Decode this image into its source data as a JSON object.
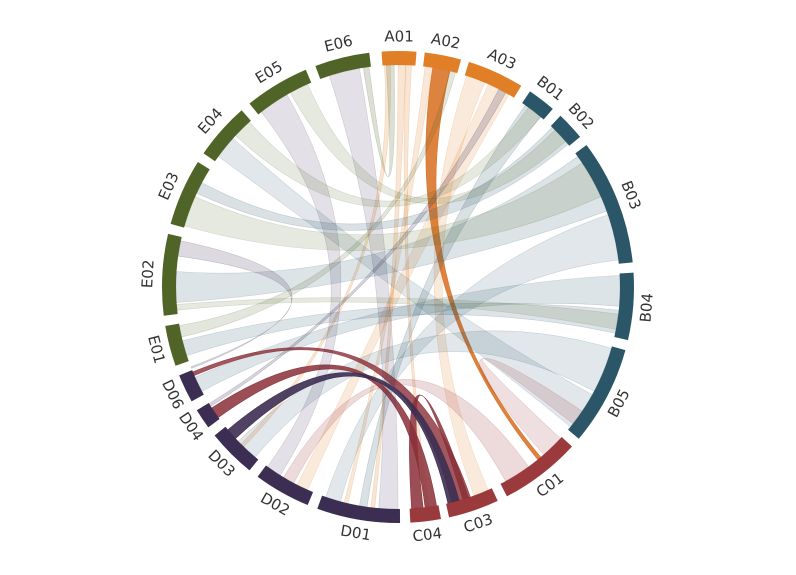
{
  "diagram": {
    "type": "chord",
    "groups": [
      {
        "id": "A01",
        "label": "A01",
        "start": -4.0,
        "end": 4.5,
        "color": "#e07f26"
      },
      {
        "id": "A02",
        "label": "A02",
        "start": 6.5,
        "end": 15.5,
        "color": "#e07f26"
      },
      {
        "id": "A03",
        "label": "A03",
        "start": 17.5,
        "end": 31.5,
        "color": "#e07f26"
      },
      {
        "id": "B01",
        "label": "B01",
        "start": 34.0,
        "end": 41.0,
        "color": "#2a5667"
      },
      {
        "id": "B02",
        "label": "B02",
        "start": 43.5,
        "end": 50.5,
        "color": "#2a5667"
      },
      {
        "id": "B03",
        "label": "B03",
        "start": 53.0,
        "end": 84.0,
        "color": "#2a5667"
      },
      {
        "id": "B04",
        "label": "B04",
        "start": 86.5,
        "end": 103.0,
        "color": "#2a5667"
      },
      {
        "id": "B05",
        "label": "B05",
        "start": 105.5,
        "end": 130.0,
        "color": "#2a5667"
      },
      {
        "id": "C01",
        "label": "C01",
        "start": 132.5,
        "end": 152.5,
        "color": "#9a3a3c"
      },
      {
        "id": "C03",
        "label": "C03",
        "start": 155.0,
        "end": 167.5,
        "color": "#9a3a3c"
      },
      {
        "id": "C04",
        "label": "C04",
        "start": 169.5,
        "end": 177.0,
        "color": "#9a3a3c"
      },
      {
        "id": "D01",
        "label": "D01",
        "start": 179.5,
        "end": 200.0,
        "color": "#3c2e52"
      },
      {
        "id": "D02",
        "label": "D02",
        "start": 202.5,
        "end": 216.5,
        "color": "#3c2e52"
      },
      {
        "id": "D03",
        "label": "D03",
        "start": 219.0,
        "end": 231.0,
        "color": "#3c2e52"
      },
      {
        "id": "D04",
        "label": "D04",
        "start": 233.5,
        "end": 238.5,
        "color": "#3c2e52"
      },
      {
        "id": "D06",
        "label": "D06",
        "start": 241.0,
        "end": 248.0,
        "color": "#3c2e52"
      },
      {
        "id": "E01",
        "label": "E01",
        "start": 250.5,
        "end": 260.5,
        "color": "#4f6426"
      },
      {
        "id": "E02",
        "label": "E02",
        "start": 263.0,
        "end": 283.0,
        "color": "#4f6426"
      },
      {
        "id": "E03",
        "label": "E03",
        "start": 285.5,
        "end": 302.0,
        "color": "#4f6426"
      },
      {
        "id": "E04",
        "label": "E04",
        "start": 304.5,
        "end": 318.5,
        "color": "#4f6426"
      },
      {
        "id": "E05",
        "label": "E05",
        "start": 321.0,
        "end": 337.0,
        "color": "#4f6426"
      },
      {
        "id": "E06",
        "label": "E06",
        "start": 339.5,
        "end": 353.0,
        "color": "#4f6426"
      }
    ],
    "ribbons": [
      {
        "source": "A01",
        "target": "D01",
        "s": [
          0,
          2
        ],
        "t": [
          186,
          187
        ],
        "opacity": 0.2,
        "color": "#e07f26"
      },
      {
        "source": "A01",
        "target": "C04",
        "s": [
          2,
          3.5
        ],
        "t": [
          172,
          173
        ],
        "opacity": 0.2,
        "color": "#e07f26"
      },
      {
        "source": "A01",
        "target": "D03",
        "s": [
          -3.5,
          -2
        ],
        "t": [
          224,
          225
        ],
        "opacity": 0.2,
        "color": "#e07f26"
      },
      {
        "source": "A02",
        "target": "C01",
        "s": [
          9,
          13.5
        ],
        "t": [
          140,
          141
        ],
        "opacity": 0.9,
        "color": "#d9742a"
      },
      {
        "source": "A02",
        "target": "D01",
        "s": [
          7,
          9
        ],
        "t": [
          193,
          194
        ],
        "opacity": 0.18,
        "color": "#e07f26"
      },
      {
        "source": "A03",
        "target": "C03",
        "s": [
          18,
          23
        ],
        "t": [
          156,
          160
        ],
        "opacity": 0.16,
        "color": "#e07f26"
      },
      {
        "source": "A03",
        "target": "D02",
        "s": [
          24,
          30
        ],
        "t": [
          204,
          207
        ],
        "opacity": 0.16,
        "color": "#e07f26"
      },
      {
        "source": "B01",
        "target": "D01",
        "s": [
          35,
          40
        ],
        "t": [
          188,
          190
        ],
        "opacity": 0.18,
        "color": "#2a5667"
      },
      {
        "source": "B02",
        "target": "E03",
        "s": [
          44,
          50
        ],
        "t": [
          295,
          298
        ],
        "opacity": 0.18,
        "color": "#2a5667"
      },
      {
        "source": "B03",
        "target": "E02",
        "s": [
          54,
          70
        ],
        "t": [
          266,
          274
        ],
        "opacity": 0.16,
        "color": "#2a5667"
      },
      {
        "source": "B03",
        "target": "D01",
        "s": [
          71,
          83
        ],
        "t": [
          195,
          199
        ],
        "opacity": 0.14,
        "color": "#2a5667"
      },
      {
        "source": "B04",
        "target": "D06",
        "s": [
          87,
          95
        ],
        "t": [
          242,
          246
        ],
        "opacity": 0.16,
        "color": "#2a5667"
      },
      {
        "source": "B04",
        "target": "E01",
        "s": [
          96,
          102
        ],
        "t": [
          252,
          256
        ],
        "opacity": 0.16,
        "color": "#2a5667"
      },
      {
        "source": "B05",
        "target": "D03",
        "s": [
          106,
          118
        ],
        "t": [
          220,
          226
        ],
        "opacity": 0.14,
        "color": "#2a5667"
      },
      {
        "source": "B05",
        "target": "E04",
        "s": [
          119,
          129
        ],
        "t": [
          306,
          312
        ],
        "opacity": 0.14,
        "color": "#2a5667"
      },
      {
        "source": "C01",
        "target": "D02",
        "s": [
          144,
          151
        ],
        "t": [
          208,
          211
        ],
        "opacity": 0.18,
        "color": "#9a3a3c"
      },
      {
        "source": "C01",
        "target": "B05",
        "s": [
          133,
          139
        ],
        "t": [
          124,
          128
        ],
        "opacity": 0.16,
        "color": "#9a3a3c"
      },
      {
        "source": "C03",
        "target": "D06",
        "s": [
          161,
          166
        ],
        "t": [
          246.5,
          247.5
        ],
        "opacity": 0.8,
        "color": "#8a2f37"
      },
      {
        "source": "C04",
        "target": "C03",
        "s": [
          173.5,
          176.5
        ],
        "t": [
          161.5,
          163
        ],
        "opacity": 0.85,
        "color": "#8a2f37"
      },
      {
        "source": "C04",
        "target": "D04",
        "s": [
          170,
          173
        ],
        "t": [
          234,
          237
        ],
        "opacity": 0.85,
        "color": "#8a2f37"
      },
      {
        "source": "D01",
        "target": "E06",
        "s": [
          180,
          185
        ],
        "t": [
          342,
          350
        ],
        "opacity": 0.14,
        "color": "#3c2e52"
      },
      {
        "source": "D02",
        "target": "E05",
        "s": [
          212,
          216
        ],
        "t": [
          322,
          330
        ],
        "opacity": 0.14,
        "color": "#3c2e52"
      },
      {
        "source": "D03",
        "target": "C03",
        "s": [
          227,
          230
        ],
        "t": [
          164,
          167
        ],
        "opacity": 0.9,
        "color": "#3c2e52"
      },
      {
        "source": "D04",
        "target": "A03",
        "s": [
          237.5,
          238.3
        ],
        "t": [
          27,
          29
        ],
        "opacity": 0.2,
        "color": "#3c2e52"
      },
      {
        "source": "D06",
        "target": "E02",
        "s": [
          248.5,
          248.9
        ],
        "t": [
          278,
          282
        ],
        "opacity": 0.18,
        "color": "#3c2e52"
      },
      {
        "source": "E01",
        "target": "A02",
        "s": [
          257,
          260
        ],
        "t": [
          13.5,
          15
        ],
        "opacity": 0.16,
        "color": "#4f6426"
      },
      {
        "source": "E02",
        "target": "B04",
        "s": [
          264,
          265.5
        ],
        "t": [
          97,
          101
        ],
        "opacity": 0.14,
        "color": "#4f6426"
      },
      {
        "source": "E03",
        "target": "B03",
        "s": [
          286,
          294
        ],
        "t": [
          56,
          66
        ],
        "opacity": 0.14,
        "color": "#4f6426"
      },
      {
        "source": "E04",
        "target": "B01",
        "s": [
          313,
          318
        ],
        "t": [
          36,
          40
        ],
        "opacity": 0.14,
        "color": "#4f6426"
      },
      {
        "source": "E05",
        "target": "B02",
        "s": [
          331,
          336
        ],
        "t": [
          45,
          49
        ],
        "opacity": 0.14,
        "color": "#4f6426"
      },
      {
        "source": "E06",
        "target": "A01",
        "s": [
          351,
          352.5
        ],
        "t": [
          -3,
          -1
        ],
        "opacity": 0.2,
        "color": "#4f6426"
      }
    ]
  }
}
